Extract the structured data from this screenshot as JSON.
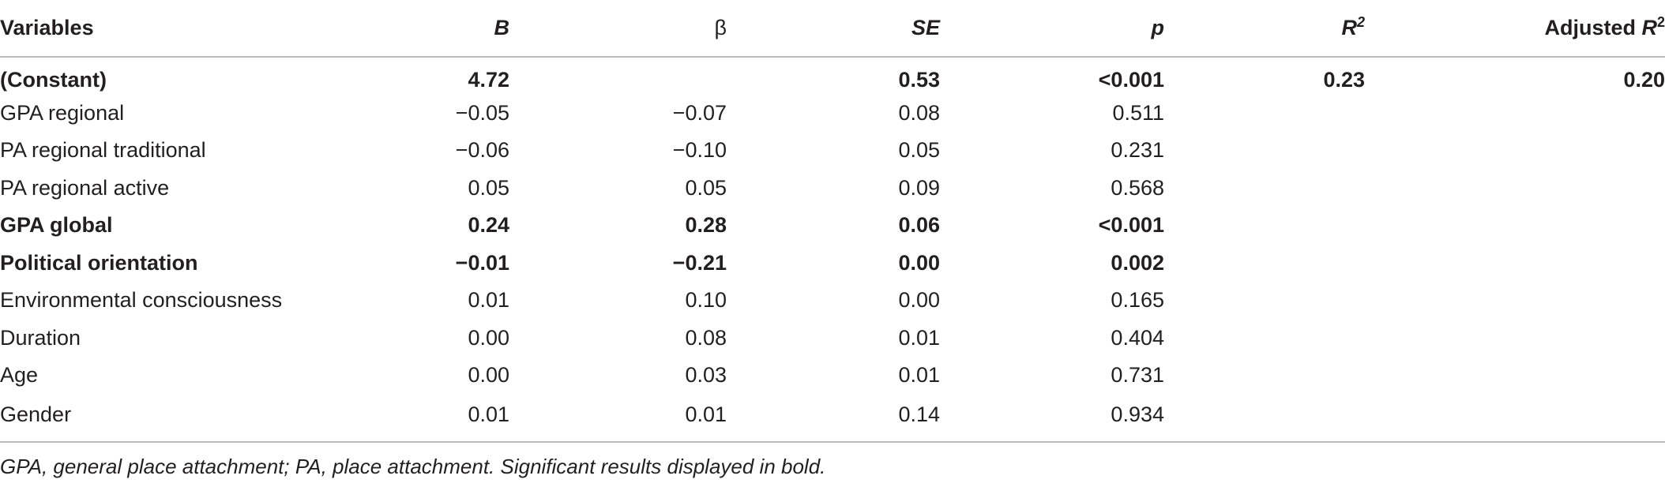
{
  "table": {
    "headers": {
      "variables": "Variables",
      "b": "B",
      "beta": "β",
      "se": "SE",
      "p": "p",
      "r2_base": "R",
      "r2_sup": "2",
      "adj_prefix": "Adjusted ",
      "adj_base": "R",
      "adj_sup": "2"
    },
    "rows": [
      {
        "variable": "(Constant)",
        "b": "4.72",
        "beta": "",
        "se": "0.53",
        "p": "<0.001",
        "r2": "0.23",
        "adj_r2": "0.20",
        "bold": true
      },
      {
        "variable": "GPA regional",
        "b": "−0.05",
        "beta": "−0.07",
        "se": "0.08",
        "p": "0.511",
        "r2": "",
        "adj_r2": "",
        "bold": false
      },
      {
        "variable": "PA regional traditional",
        "b": "−0.06",
        "beta": "−0.10",
        "se": "0.05",
        "p": "0.231",
        "r2": "",
        "adj_r2": "",
        "bold": false
      },
      {
        "variable": "PA regional active",
        "b": "0.05",
        "beta": "0.05",
        "se": "0.09",
        "p": "0.568",
        "r2": "",
        "adj_r2": "",
        "bold": false
      },
      {
        "variable": "GPA global",
        "b": "0.24",
        "beta": "0.28",
        "se": "0.06",
        "p": "<0.001",
        "r2": "",
        "adj_r2": "",
        "bold": true
      },
      {
        "variable": "Political orientation",
        "b": "−0.01",
        "beta": "−0.21",
        "se": "0.00",
        "p": "0.002",
        "r2": "",
        "adj_r2": "",
        "bold": true
      },
      {
        "variable": "Environmental consciousness",
        "b": "0.01",
        "beta": "0.10",
        "se": "0.00",
        "p": "0.165",
        "r2": "",
        "adj_r2": "",
        "bold": false
      },
      {
        "variable": "Duration",
        "b": "0.00",
        "beta": "0.08",
        "se": "0.01",
        "p": "0.404",
        "r2": "",
        "adj_r2": "",
        "bold": false
      },
      {
        "variable": "Age",
        "b": "0.00",
        "beta": "0.03",
        "se": "0.01",
        "p": "0.731",
        "r2": "",
        "adj_r2": "",
        "bold": false
      },
      {
        "variable": "Gender",
        "b": "0.01",
        "beta": "0.01",
        "se": "0.14",
        "p": "0.934",
        "r2": "",
        "adj_r2": "",
        "bold": false
      }
    ]
  },
  "footnote": "GPA, general place attachment; PA, place attachment. Significant results displayed in bold."
}
